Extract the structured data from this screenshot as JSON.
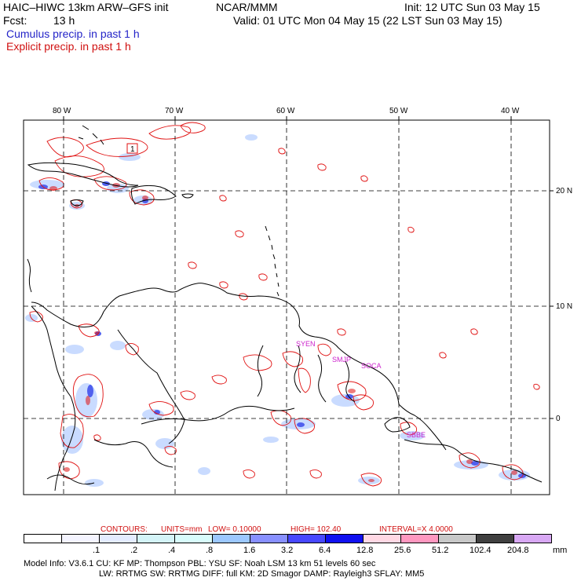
{
  "header": {
    "title": "HAIC–HIWC 13km ARW–GFS init",
    "org": "NCAR/MMM",
    "init": "Init: 12 UTC Sun 03 May 15",
    "fcst_label": "Fcst:",
    "fcst_value": "13 h",
    "valid": "Valid: 01 UTC Mon 04 May 15 (22 LST Sun 03 May 15)",
    "cumulus": "Cumulus precip. in past 1 h",
    "explicit": "Explicit precip. in past 1 h"
  },
  "colors": {
    "cumulus": "#2424c8",
    "explicit": "#e01010",
    "coast": "#000000",
    "grid": "#000000",
    "station": "#cc22cc"
  },
  "map": {
    "lon_labels": [
      "80 W",
      "70 W",
      "60 W",
      "50 W",
      "40 W"
    ],
    "lat_labels": [
      "20 N",
      "10 N",
      "0"
    ],
    "lon_values": [
      -80,
      -70,
      -60,
      -50,
      -40
    ],
    "lat_values": [
      20,
      10,
      0
    ],
    "stations": [
      "SYEN",
      "SMJP",
      "SOCA",
      "SBBE"
    ],
    "marker": "1"
  },
  "contours": {
    "label": "CONTOURS:",
    "units": "UNITS=mm",
    "low": "LOW= 0.10000",
    "high": "HIGH= 102.40",
    "interval": "INTERVAL=X 4.0000"
  },
  "legend": {
    "unit": "mm",
    "labels": [
      ".1",
      ".2",
      ".4",
      ".8",
      "1.6",
      "3.2",
      "6.4",
      "12.8",
      "25.6",
      "51.2",
      "102.4",
      "204.8"
    ],
    "colors": [
      "#ffffff",
      "#f4f4ff",
      "#e4ecff",
      "#d4f4f8",
      "#d8fcfc",
      "#9cc8ff",
      "#8890ff",
      "#4848ff",
      "#1010f0",
      "#ffd8e4",
      "#ff98c0",
      "#c8c8c8",
      "#404040",
      "#d8a8f4"
    ]
  },
  "model_info": {
    "line1": "Model Info: V3.6.1    CU: KF      MP: Thompson    PBL: YSU       SF: Noah LSM     13 km    51 levels   60 sec",
    "line2": "LW: RRTMG    SW: RRTMG   DIFF: full    KM: 2D Smagor DAMP: Rayleigh3   SFLAY: MM5"
  }
}
